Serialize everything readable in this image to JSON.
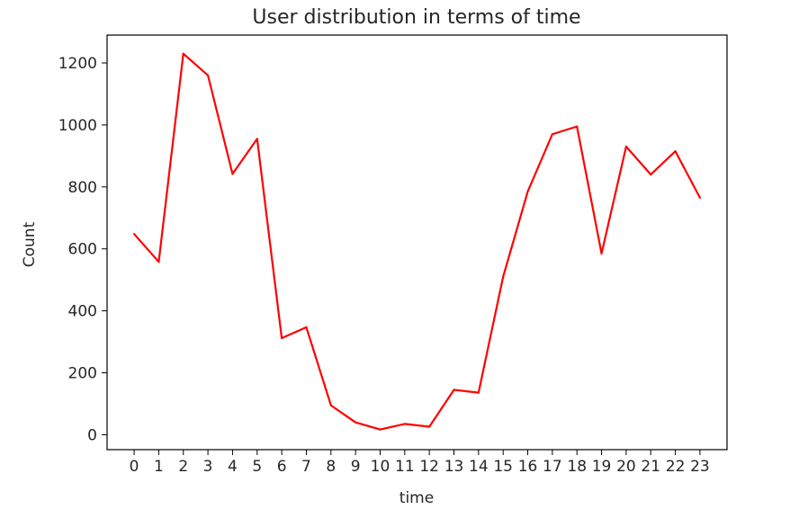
{
  "chart_data": {
    "type": "line",
    "title": "User distribution in terms of time",
    "xlabel": "time",
    "ylabel": "Count",
    "x": [
      "0",
      "1",
      "2",
      "3",
      "4",
      "5",
      "6",
      "7",
      "8",
      "9",
      "10",
      "11",
      "12",
      "13",
      "14",
      "15",
      "16",
      "17",
      "18",
      "19",
      "20",
      "21",
      "22",
      "23"
    ],
    "series": [
      {
        "color": "#ff0000",
        "values": [
          648,
          558,
          1230,
          1160,
          842,
          955,
          312,
          347,
          95,
          40,
          17,
          35,
          26,
          145,
          136,
          510,
          785,
          970,
          995,
          585,
          930,
          840,
          915,
          765
        ]
      }
    ],
    "yticks": [
      0,
      200,
      400,
      600,
      800,
      1000,
      1200
    ],
    "ylim": [
      -48,
      1290
    ],
    "xlim": [
      -1.1,
      24.1
    ],
    "grid": false,
    "legend": "none"
  }
}
